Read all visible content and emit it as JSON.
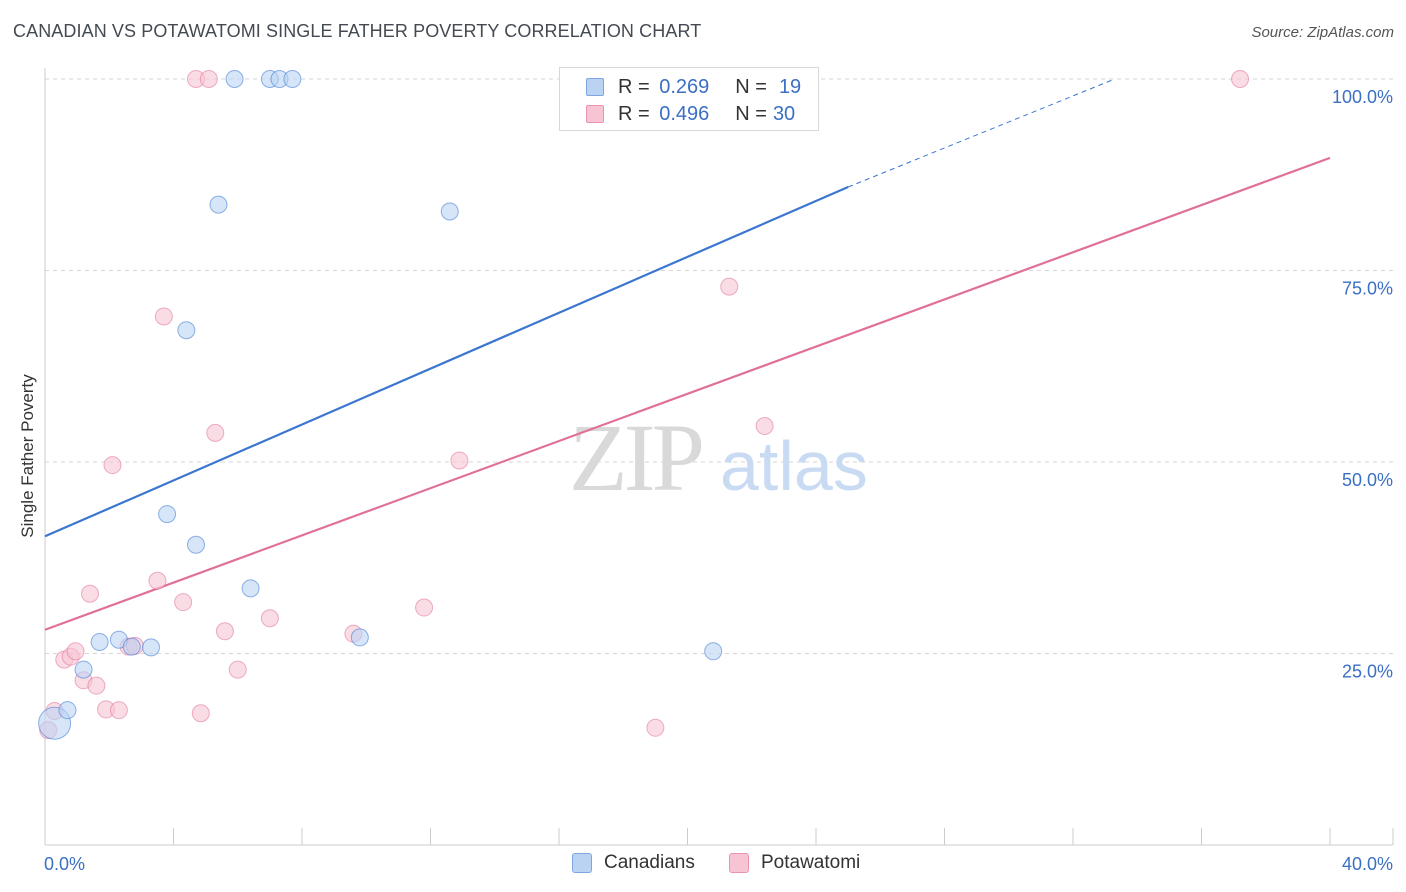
{
  "title": "CANADIAN VS POTAWATOMI SINGLE FATHER POVERTY CORRELATION CHART",
  "source": "Source: ZipAtlas.com",
  "watermark": {
    "zip": "ZIP",
    "atlas": "atlas"
  },
  "colors": {
    "blue": "#3b76d1",
    "blue_fill": "#bad3f3",
    "pink": "#e0709a",
    "pink_fill": "#f7c4d4",
    "tick_label": "#3b6fc4",
    "grid": "#d6d6d6"
  },
  "legend": {
    "rows": [
      {
        "series": "Canadians",
        "r_label": "R =",
        "r_value": "0.269",
        "n_label": "N =",
        "n_value": "19"
      },
      {
        "series": "Potawatomi",
        "r_label": "R =",
        "r_value": "0.496",
        "n_label": "N =",
        "n_value": "30"
      }
    ]
  },
  "chart_data": {
    "type": "scatter",
    "title": "CANADIAN VS POTAWATOMI SINGLE FATHER POVERTY CORRELATION CHART",
    "xlabel": "",
    "ylabel": "Single Father Poverty",
    "xlim": [
      0,
      40
    ],
    "ylim": [
      0,
      100
    ],
    "x_tick_labels": [
      {
        "value": 0,
        "label": "0.0%"
      },
      {
        "value": 40,
        "label": "40.0%"
      }
    ],
    "y_tick_labels": [
      {
        "value": 25,
        "label": "25.0%"
      },
      {
        "value": 50,
        "label": "50.0%"
      },
      {
        "value": 75,
        "label": "75.0%"
      },
      {
        "value": 100,
        "label": "100.0%"
      }
    ],
    "x_minor_ticks": [
      0,
      4,
      8,
      12,
      16,
      20,
      24,
      28,
      32,
      36,
      40
    ],
    "grid": true,
    "legend_position": "top-center",
    "series": [
      {
        "name": "Canadians",
        "color": "blue",
        "points": [
          {
            "x": 0.3,
            "y": 15.9,
            "big": true
          },
          {
            "x": 0.7,
            "y": 17.6
          },
          {
            "x": 1.2,
            "y": 22.9
          },
          {
            "x": 1.7,
            "y": 26.5
          },
          {
            "x": 2.3,
            "y": 26.8
          },
          {
            "x": 2.7,
            "y": 25.9
          },
          {
            "x": 3.3,
            "y": 25.8
          },
          {
            "x": 3.8,
            "y": 43.2
          },
          {
            "x": 4.4,
            "y": 67.2
          },
          {
            "x": 4.7,
            "y": 39.2
          },
          {
            "x": 5.4,
            "y": 83.6
          },
          {
            "x": 5.9,
            "y": 100
          },
          {
            "x": 6.4,
            "y": 33.5
          },
          {
            "x": 7.0,
            "y": 100
          },
          {
            "x": 7.3,
            "y": 100
          },
          {
            "x": 7.7,
            "y": 100
          },
          {
            "x": 9.8,
            "y": 27.1
          },
          {
            "x": 12.6,
            "y": 82.7
          },
          {
            "x": 20.8,
            "y": 25.3
          }
        ],
        "trend": {
          "x0": 0,
          "y0": 40.3,
          "x1": 25.0,
          "y1": 85.9,
          "dash_to_x": 33.3,
          "dash_to_y": 100
        }
      },
      {
        "name": "Potawatomi",
        "color": "pink",
        "points": [
          {
            "x": 0.1,
            "y": 15.0
          },
          {
            "x": 0.3,
            "y": 17.5
          },
          {
            "x": 0.6,
            "y": 24.2
          },
          {
            "x": 0.8,
            "y": 24.6
          },
          {
            "x": 0.95,
            "y": 25.3
          },
          {
            "x": 1.2,
            "y": 21.5
          },
          {
            "x": 1.4,
            "y": 32.8
          },
          {
            "x": 1.6,
            "y": 20.8
          },
          {
            "x": 1.9,
            "y": 17.7
          },
          {
            "x": 2.1,
            "y": 49.6
          },
          {
            "x": 2.3,
            "y": 17.6
          },
          {
            "x": 2.6,
            "y": 25.9
          },
          {
            "x": 2.8,
            "y": 26.0
          },
          {
            "x": 3.5,
            "y": 34.5
          },
          {
            "x": 3.7,
            "y": 69.0
          },
          {
            "x": 4.3,
            "y": 31.7
          },
          {
            "x": 4.7,
            "y": 100
          },
          {
            "x": 4.85,
            "y": 17.2
          },
          {
            "x": 5.1,
            "y": 100
          },
          {
            "x": 5.3,
            "y": 53.8
          },
          {
            "x": 5.6,
            "y": 27.9
          },
          {
            "x": 6.0,
            "y": 22.9
          },
          {
            "x": 7.0,
            "y": 29.6
          },
          {
            "x": 9.6,
            "y": 27.6
          },
          {
            "x": 11.8,
            "y": 31.0
          },
          {
            "x": 12.9,
            "y": 50.2
          },
          {
            "x": 19.0,
            "y": 15.3
          },
          {
            "x": 21.3,
            "y": 72.9
          },
          {
            "x": 22.4,
            "y": 54.7
          },
          {
            "x": 37.2,
            "y": 100
          }
        ],
        "trend": {
          "x0": 0,
          "y0": 28.1,
          "x1": 40.0,
          "y1": 89.7
        }
      }
    ]
  },
  "bottom_legend": [
    {
      "label": "Canadians",
      "color": "blue"
    },
    {
      "label": "Potawatomi",
      "color": "pink"
    }
  ]
}
